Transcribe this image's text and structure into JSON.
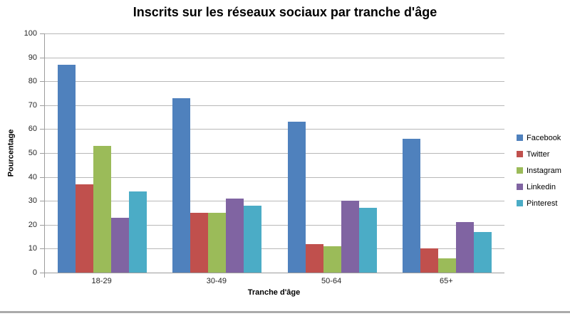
{
  "window": {
    "background_color": "#ffffff",
    "bottom_edge_color": "#ababab"
  },
  "chart_data": {
    "type": "bar",
    "title": "Inscrits sur les réseaux sociaux par tranche d'âge",
    "xlabel": "Tranche d'âge",
    "ylabel": "Pourcentage",
    "categories": [
      "18-29",
      "30-49",
      "50-64",
      "65+"
    ],
    "series": [
      {
        "name": "Facebook",
        "color": "#4F81BD",
        "values": [
          87,
          73,
          63,
          56
        ]
      },
      {
        "name": "Twitter",
        "color": "#C0504D",
        "values": [
          37,
          25,
          12,
          10
        ]
      },
      {
        "name": "Instagram",
        "color": "#9BBB59",
        "values": [
          53,
          25,
          11,
          6
        ]
      },
      {
        "name": "Linkedin",
        "color": "#8064A2",
        "values": [
          23,
          31,
          30,
          21
        ]
      },
      {
        "name": "Pinterest",
        "color": "#4BACC6",
        "values": [
          34,
          28,
          27,
          17
        ]
      }
    ],
    "ylim": [
      0,
      100
    ],
    "yticks": [
      0,
      10,
      20,
      30,
      40,
      50,
      60,
      70,
      80,
      90,
      100
    ],
    "grid": true,
    "legend_position": "right",
    "gridline_color": "#b8b8b8",
    "axis_color": "#9d9d9d",
    "tick_label_color": "#262626"
  }
}
